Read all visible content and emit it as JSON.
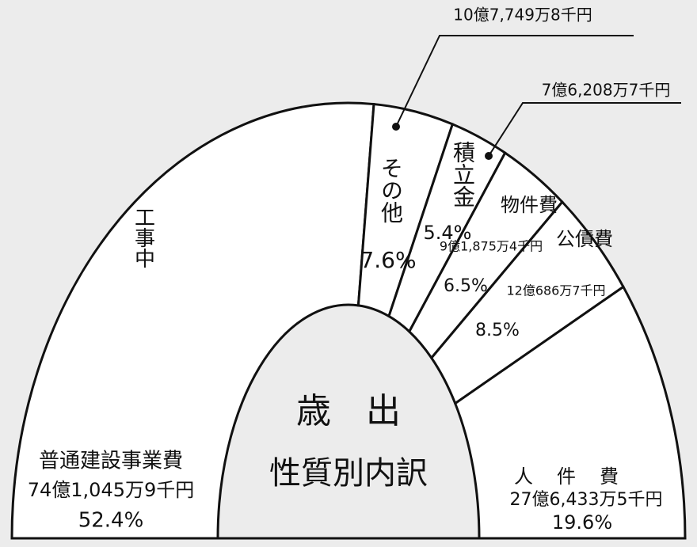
{
  "chart_data": {
    "type": "pie",
    "shape": "half-ring",
    "center_title": "歳　出",
    "center_subtitle": "性質別内訳",
    "illustration_text": "工事中",
    "categories": [
      "普通建設事業費",
      "その他",
      "積立金",
      "物件費",
      "公債費",
      "人件費"
    ],
    "values": [
      52.4,
      7.6,
      5.4,
      6.5,
      8.5,
      19.6
    ],
    "value_labels": [
      "52.4%",
      "7.6%",
      "5.4%",
      "6.5%",
      "8.5%",
      "19.6%"
    ],
    "amounts": [
      "74億1,045万9千円",
      "10億7,749万8千円",
      "7億6,208万7千円",
      "9億1,875万4千円",
      "12億686万7千円",
      "27億6,433万5千円"
    ],
    "color": "#ffffff"
  }
}
